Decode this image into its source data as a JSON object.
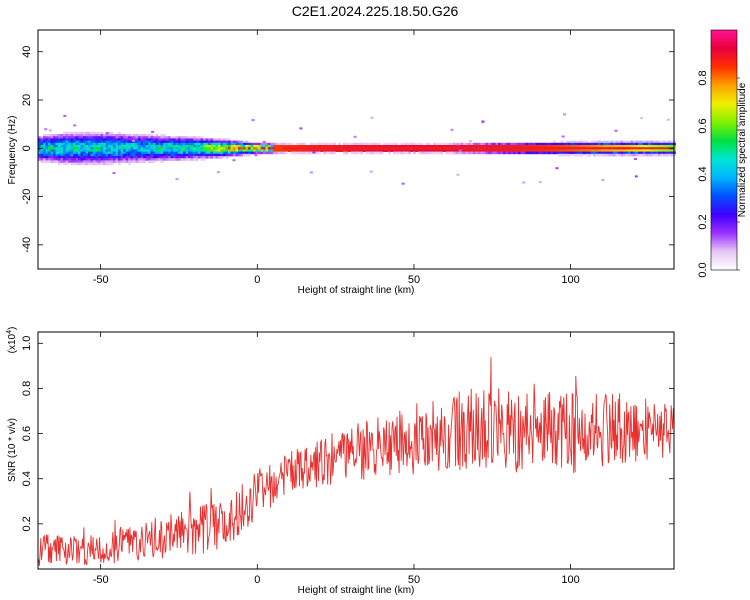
{
  "title": "C2E1.2024.225.18.50.G26",
  "colors": {
    "snr_line": "#e8302f",
    "ridge": "#e5202a",
    "axis": "#000000"
  },
  "chart_data": [
    {
      "type": "heatmap",
      "xlabel": "Height of straight line (km)",
      "ylabel": "Frequency (Hz)",
      "xlim": [
        -70,
        133
      ],
      "ylim": [
        -50,
        49
      ],
      "xticks": [
        -50,
        0,
        50,
        100
      ],
      "xtick_labels": [
        "-50",
        "0",
        "50",
        "100"
      ],
      "yticks": [
        -40,
        -20,
        0,
        20,
        40
      ],
      "ytick_labels": [
        "-40",
        "-20",
        "0",
        "20",
        "40"
      ],
      "colorbar": {
        "label": "Normalized spectral amplitude",
        "range": [
          0,
          1
        ],
        "ticks": [
          0.0,
          0.2,
          0.4,
          0.6,
          0.8
        ],
        "tick_labels": [
          "0.0",
          "0.2",
          "0.4",
          "0.6",
          "0.8"
        ],
        "colormap": [
          "#ffffff",
          "#e6c8f5",
          "#9b30ff",
          "#3c00ff",
          "#0050ff",
          "#00b4ff",
          "#00e6d2",
          "#00e040",
          "#80f000",
          "#f0f000",
          "#ffa000",
          "#ff3000",
          "#e8003c",
          "#ff1493"
        ]
      },
      "ridge_frequency_hz": 0,
      "ridge_x": [
        -70,
        -60,
        -50,
        -40,
        -30,
        -20,
        -10,
        0,
        10,
        20,
        40,
        60,
        80,
        100,
        120,
        133
      ],
      "ridge_amplitude": [
        0.45,
        0.45,
        0.45,
        0.42,
        0.45,
        0.5,
        0.7,
        0.82,
        0.85,
        0.88,
        0.9,
        0.9,
        0.88,
        0.82,
        0.72,
        0.6
      ],
      "ridge_halfwidth_hz": [
        4,
        5,
        5,
        4.5,
        4,
        3.5,
        2.5,
        1.5,
        1.2,
        1.2,
        1.2,
        1.2,
        1.5,
        1.8,
        2,
        2
      ]
    },
    {
      "type": "line",
      "xlabel": "Height of straight line (km)",
      "ylabel": "SNR (10 * v/v)",
      "y_multiplier": "(x10",
      "y_multiplier_exp": "4",
      "y_multiplier_close": ")",
      "xlim": [
        -70,
        133
      ],
      "ylim": [
        0.0,
        1.05
      ],
      "xticks": [
        -50,
        0,
        50,
        100
      ],
      "xtick_labels": [
        "-50",
        "0",
        "50",
        "100"
      ],
      "yticks": [
        0.2,
        0.4,
        0.6,
        0.8,
        1.0
      ],
      "ytick_labels": [
        "0.2",
        "0.4",
        "0.6",
        "0.8",
        "1.0"
      ],
      "series": [
        {
          "x": [
            -70,
            -60,
            -50,
            -40,
            -30,
            -20,
            -15,
            -10,
            -5,
            0,
            5,
            10,
            20,
            30,
            40,
            50,
            60,
            70,
            80,
            90,
            100,
            110,
            120,
            133
          ],
          "y": [
            0.08,
            0.09,
            0.08,
            0.11,
            0.14,
            0.17,
            0.18,
            0.21,
            0.27,
            0.33,
            0.38,
            0.42,
            0.47,
            0.51,
            0.54,
            0.56,
            0.6,
            0.62,
            0.62,
            0.64,
            0.6,
            0.62,
            0.62,
            0.63
          ],
          "noise_amplitude": [
            0.07,
            0.07,
            0.07,
            0.08,
            0.1,
            0.11,
            0.11,
            0.12,
            0.12,
            0.11,
            0.1,
            0.1,
            0.11,
            0.13,
            0.14,
            0.16,
            0.17,
            0.19,
            0.2,
            0.2,
            0.18,
            0.17,
            0.15,
            0.13
          ]
        }
      ]
    }
  ]
}
